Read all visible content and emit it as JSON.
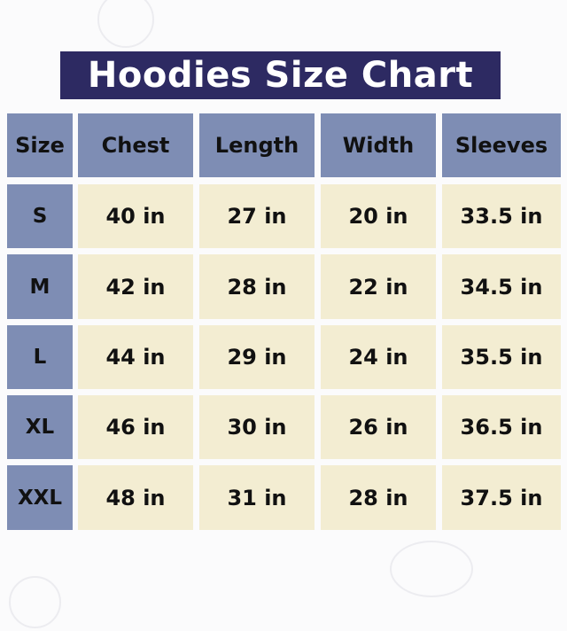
{
  "title": "Hoodies Size Chart",
  "colors": {
    "title_bg": "#2d2a62",
    "header_bg": "#7e8db4",
    "cell_bg": "#f3edd2"
  },
  "chart_data": {
    "type": "table",
    "title": "Hoodies Size Chart",
    "columns": [
      "Size",
      "Chest",
      "Length",
      "Width",
      "Sleeves"
    ],
    "rows": [
      [
        "S",
        "40 in",
        "27 in",
        "20 in",
        "33.5 in"
      ],
      [
        "M",
        "42 in",
        "28 in",
        "22 in",
        "34.5 in"
      ],
      [
        "L",
        "44 in",
        "29 in",
        "24 in",
        "35.5 in"
      ],
      [
        "XL",
        "46 in",
        "30 in",
        "26 in",
        "36.5 in"
      ],
      [
        "XXL",
        "48 in",
        "31 in",
        "28 in",
        "37.5 in"
      ]
    ]
  }
}
